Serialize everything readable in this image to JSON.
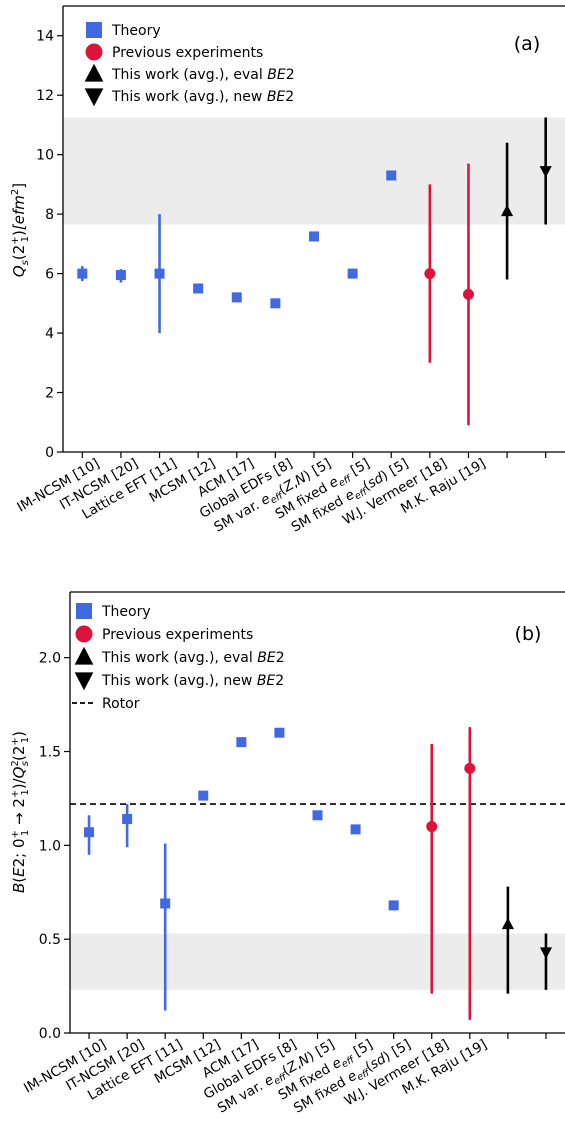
{
  "chart_data": [
    {
      "type": "scatter",
      "panel_tag": "(a)",
      "ylabel_parts": {
        "main": "Q",
        "sub_s": "s",
        "arg_open": "(2",
        "sup1": "+",
        "sub1": "1",
        "arg_close": ")",
        "unit_open": "[efm",
        "unit_sup": "2",
        "unit_close": "]"
      },
      "ylim": [
        0,
        15
      ],
      "yticks": [
        0,
        2,
        4,
        6,
        8,
        10,
        12,
        14
      ],
      "xlim": [
        0.5,
        13.5
      ],
      "band": [
        7.65,
        11.25
      ],
      "reference_line": null,
      "categories": [
        "IM-NCSM [10]",
        "IT-NCSM [20]",
        "Lattice EFT [11]",
        "MCSM [12]",
        "ACM [17]",
        "Global EDFs [8]",
        "SM var. e_eff(Z,N) [5]",
        "SM fixed e_eff [5]",
        "SM fixed e_eff(sd) [5]",
        "W.J. Vermeer [18]",
        "M.K. Raju [19]"
      ],
      "legend": [
        {
          "marker": "square",
          "color": "#4169e1",
          "label": "Theory"
        },
        {
          "marker": "circle",
          "color": "#dc143c",
          "label": "Previous experiments"
        },
        {
          "marker": "triangle-up",
          "color": "#000000",
          "label": "This work (avg.), eval ",
          "label_italic": "BE",
          "label_tail": "2"
        },
        {
          "marker": "triangle-down",
          "color": "#000000",
          "label": "This work (avg.), new ",
          "label_italic": "BE",
          "label_tail": "2"
        }
      ],
      "series": [
        {
          "name": "Theory",
          "marker": "square",
          "color": "#4169e1",
          "points": [
            {
              "x": 1,
              "y": 6.0,
              "lo": 5.75,
              "hi": 6.25
            },
            {
              "x": 2,
              "y": 5.95,
              "lo": 5.7,
              "hi": 6.15
            },
            {
              "x": 3,
              "y": 6.0,
              "lo": 4.0,
              "hi": 8.0
            },
            {
              "x": 4,
              "y": 5.5
            },
            {
              "x": 5,
              "y": 5.2
            },
            {
              "x": 6,
              "y": 5.0
            },
            {
              "x": 7,
              "y": 7.25
            },
            {
              "x": 8,
              "y": 6.0
            },
            {
              "x": 9,
              "y": 9.3
            }
          ]
        },
        {
          "name": "Previous experiments",
          "marker": "circle",
          "color": "#dc143c",
          "points": [
            {
              "x": 10,
              "y": 6.0,
              "lo": 3.0,
              "hi": 9.0
            },
            {
              "x": 11,
              "y": 5.3,
              "lo": 0.9,
              "hi": 9.7
            }
          ]
        },
        {
          "name": "This work (avg.), eval BE2",
          "marker": "triangle-up",
          "color": "#000000",
          "points": [
            {
              "x": 12,
              "y": 8.1,
              "lo": 5.8,
              "hi": 10.4
            }
          ]
        },
        {
          "name": "This work (avg.), new BE2",
          "marker": "triangle-down",
          "color": "#000000",
          "points": [
            {
              "x": 13,
              "y": 9.45,
              "lo": 7.65,
              "hi": 11.25
            }
          ]
        }
      ]
    },
    {
      "type": "scatter",
      "panel_tag": "(b)",
      "ylabel_parts": {
        "pre": "B(E2; 0",
        "sup0": "+",
        "sub0": "1",
        "arrow": " → 2",
        "sup1": "+",
        "sub1": "1",
        "mid": ")/Q",
        "sup2": "2",
        "sub2": "s",
        "arg_open": "(2",
        "sup3": "+",
        "sub3": "1",
        "arg_close": ")"
      },
      "ylim": [
        0,
        2.35
      ],
      "yticks": [
        0.0,
        0.5,
        1.0,
        1.5,
        2.0
      ],
      "xlim": [
        0.5,
        13.5
      ],
      "band": [
        0.23,
        0.53
      ],
      "reference_line": 1.22,
      "categories": [
        "IM-NCSM [10]",
        "IT-NCSM [20]",
        "Lattice EFT [11]",
        "MCSM [12]",
        "ACM [17]",
        "Global EDFs [8]",
        "SM var. e_eff(Z,N) [5]",
        "SM fixed e_eff [5]",
        "SM fixed e_eff(sd) [5]",
        "W.J. Vermeer [18]",
        "M.K. Raju [19]"
      ],
      "legend": [
        {
          "marker": "square",
          "color": "#4169e1",
          "label": "Theory"
        },
        {
          "marker": "circle",
          "color": "#dc143c",
          "label": "Previous experiments"
        },
        {
          "marker": "triangle-up",
          "color": "#000000",
          "label": "This work (avg.), eval ",
          "label_italic": "BE",
          "label_tail": "2"
        },
        {
          "marker": "triangle-down",
          "color": "#000000",
          "label": "This work (avg.), new ",
          "label_italic": "BE",
          "label_tail": "2"
        },
        {
          "marker": "dashed-line",
          "color": "#000000",
          "label": "Rotor"
        }
      ],
      "series": [
        {
          "name": "Theory",
          "marker": "square",
          "color": "#4169e1",
          "points": [
            {
              "x": 1,
              "y": 1.07,
              "lo": 0.95,
              "hi": 1.16
            },
            {
              "x": 2,
              "y": 1.14,
              "lo": 0.99,
              "hi": 1.22
            },
            {
              "x": 3,
              "y": 0.69,
              "lo": 0.12,
              "hi": 1.01
            },
            {
              "x": 4,
              "y": 1.265
            },
            {
              "x": 5,
              "y": 1.55
            },
            {
              "x": 6,
              "y": 1.6
            },
            {
              "x": 7,
              "y": 1.16
            },
            {
              "x": 8,
              "y": 1.085
            },
            {
              "x": 9,
              "y": 0.68
            }
          ]
        },
        {
          "name": "Previous experiments",
          "marker": "circle",
          "color": "#dc143c",
          "points": [
            {
              "x": 10,
              "y": 1.1,
              "lo": 0.21,
              "hi": 1.54
            },
            {
              "x": 11,
              "y": 1.41,
              "lo": 0.07,
              "hi": 1.63
            }
          ]
        },
        {
          "name": "This work (avg.), eval BE2",
          "marker": "triangle-up",
          "color": "#000000",
          "points": [
            {
              "x": 12,
              "y": 0.58,
              "lo": 0.21,
              "hi": 0.78
            }
          ]
        },
        {
          "name": "This work (avg.), new BE2",
          "marker": "triangle-down",
          "color": "#000000",
          "points": [
            {
              "x": 13,
              "y": 0.43,
              "lo": 0.23,
              "hi": 0.53
            }
          ]
        }
      ]
    }
  ]
}
